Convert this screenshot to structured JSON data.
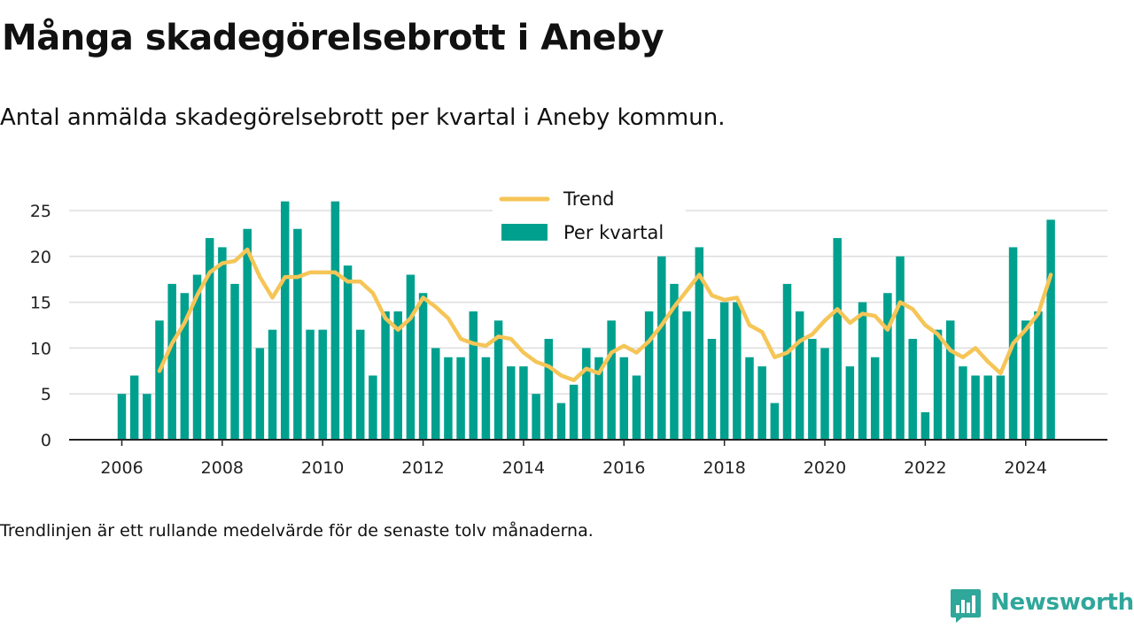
{
  "header": {
    "title": "Många skadegörelsebrott i Aneby",
    "subtitle": "Antal anmälda skadegörelsebrott per kvartal i Aneby kommun."
  },
  "footnote": "Trendlinjen är ett rullande medelvärde för de senaste tolv månaderna.",
  "brand": {
    "name": "Newsworthy",
    "icon": "newsworthy-logo-icon",
    "color": "#2fa79a"
  },
  "colors": {
    "bars": "#00a08f",
    "trend": "#f5c557",
    "grid": "#dddddd",
    "axis": "#222222"
  },
  "chart_data": {
    "type": "bar",
    "title": "",
    "xlabel": "",
    "ylabel": "",
    "ylim": [
      0,
      27
    ],
    "yticks": [
      0,
      5,
      10,
      15,
      20,
      25
    ],
    "xticks": [
      "2006",
      "2008",
      "2010",
      "2012",
      "2014",
      "2016",
      "2018",
      "2020",
      "2022",
      "2024"
    ],
    "grid": true,
    "legend_position": "top-center",
    "start_quarter": "2006 Q1",
    "series": [
      {
        "name": "Per kvartal",
        "type": "bar",
        "values": [
          5,
          7,
          5,
          13,
          17,
          16,
          18,
          22,
          21,
          17,
          23,
          10,
          12,
          26,
          23,
          12,
          12,
          26,
          19,
          12,
          7,
          14,
          14,
          18,
          16,
          10,
          9,
          9,
          14,
          9,
          13,
          8,
          8,
          5,
          11,
          4,
          6,
          10,
          9,
          13,
          9,
          7,
          14,
          20,
          17,
          14,
          21,
          11,
          15,
          15,
          9,
          8,
          4,
          17,
          14,
          11,
          10,
          22,
          8,
          15,
          9,
          16,
          20,
          11,
          3,
          12,
          13,
          8,
          7,
          7,
          7,
          21,
          13,
          14,
          24
        ]
      },
      {
        "name": "Trend",
        "type": "line",
        "values": [
          null,
          null,
          null,
          7.5,
          10.5,
          12.75,
          15.75,
          18.25,
          19.25,
          19.5,
          20.75,
          17.75,
          15.5,
          17.75,
          17.75,
          18.25,
          18.25,
          18.25,
          17.25,
          17.25,
          16,
          13.25,
          12,
          13.25,
          15.5,
          14.5,
          13.25,
          11,
          10.5,
          10.25,
          11.25,
          11,
          9.5,
          8.5,
          8,
          7,
          6.5,
          7.75,
          7.25,
          9.5,
          10.25,
          9.5,
          10.75,
          12.5,
          14.5,
          16.25,
          18,
          15.75,
          15.25,
          15.5,
          12.5,
          11.75,
          9,
          9.5,
          10.75,
          11.5,
          13,
          14.25,
          12.75,
          13.75,
          13.5,
          12,
          15,
          14.25,
          12.5,
          11.5,
          9.75,
          9,
          10,
          8.5,
          7.25,
          10.5,
          12,
          13.75,
          18
        ]
      }
    ]
  }
}
